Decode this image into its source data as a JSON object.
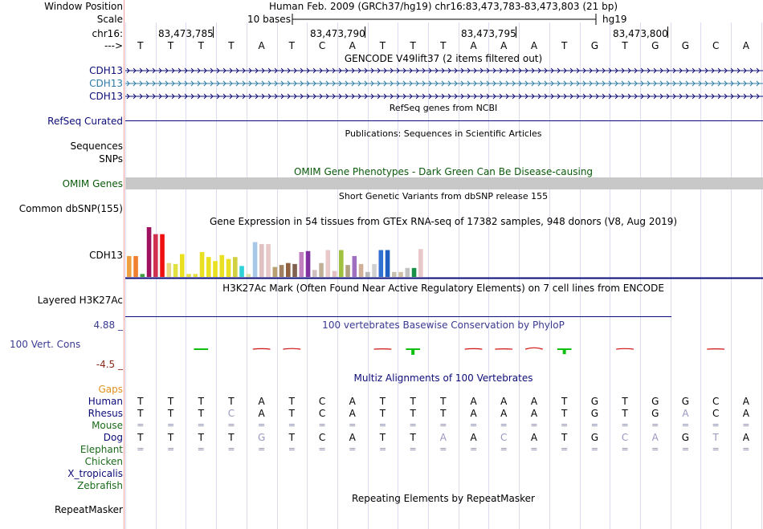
{
  "header": {
    "window_position_label": "Window Position",
    "assembly_title": "Human Feb. 2009 (GRCh37/hg19)   chr16:83,473,783-83,473,803 (21 bp)",
    "scale_label": "Scale",
    "scale_text": "10 bases",
    "scale_assembly": "hg19",
    "chrom_label": "chr16:",
    "arrow_label": "--->",
    "coord_ticks": [
      "83,473,785",
      "83,473,790",
      "83,473,795",
      "83,473,800"
    ],
    "reference_bases": [
      "T",
      "T",
      "T",
      "T",
      "A",
      "T",
      "C",
      "A",
      "T",
      "T",
      "T",
      "A",
      "A",
      "A",
      "T",
      "G",
      "T",
      "G",
      "G",
      "C",
      "A"
    ]
  },
  "tracks": {
    "gencode": {
      "title": "GENCODE V49lift37 (2 items filtered out)",
      "items": [
        {
          "label": "CDH13",
          "color": "#0c0c78"
        },
        {
          "label": "CDH13",
          "color": "#2c7aa8"
        },
        {
          "label": "CDH13",
          "color": "#0c0c78"
        }
      ]
    },
    "refseq": {
      "title": "RefSeq genes from NCBI",
      "label": "RefSeq Curated",
      "color": "#0c0c78"
    },
    "publications": {
      "title": "Publications: Sequences in Scientific Articles",
      "labels": [
        "Sequences",
        "SNPs"
      ]
    },
    "omim": {
      "title": "OMIM Gene Phenotypes - Dark Green Can Be Disease-causing",
      "label": "OMIM Genes",
      "color": "#0a5a0a",
      "bar_color": "#c8c8c8"
    },
    "dbsnp": {
      "title": "Short Genetic Variants from dbSNP release 155",
      "label": "Common dbSNP(155)"
    },
    "gtex": {
      "title": "Gene Expression in 54 tissues from GTEx RNA-seq of 17382 samples, 948 donors (V8, Aug 2019)",
      "label": "CDH13",
      "bars": [
        {
          "v": 0.42,
          "c": "#f0a040"
        },
        {
          "v": 0.42,
          "c": "#f08030"
        },
        {
          "v": 0.06,
          "c": "#40a040"
        },
        {
          "v": 1.0,
          "c": "#a01060"
        },
        {
          "v": 0.86,
          "c": "#d03050"
        },
        {
          "v": 0.86,
          "c": "#f01010"
        },
        {
          "v": 0.28,
          "c": "#e8d880"
        },
        {
          "v": 0.26,
          "c": "#e0e040"
        },
        {
          "v": 0.46,
          "c": "#e8e020"
        },
        {
          "v": 0.06,
          "c": "#e8e040"
        },
        {
          "v": 0.06,
          "c": "#e8e040"
        },
        {
          "v": 0.5,
          "c": "#e8e020"
        },
        {
          "v": 0.4,
          "c": "#e8e020"
        },
        {
          "v": 0.32,
          "c": "#e8e020"
        },
        {
          "v": 0.44,
          "c": "#e8e020"
        },
        {
          "v": 0.36,
          "c": "#e8e020"
        },
        {
          "v": 0.4,
          "c": "#d0d040"
        },
        {
          "v": 0.22,
          "c": "#30d0d8"
        },
        {
          "v": 0.06,
          "c": "#e0e0a0"
        },
        {
          "v": 0.7,
          "c": "#a8c8e8"
        },
        {
          "v": 0.66,
          "c": "#e0c0c0"
        },
        {
          "v": 0.66,
          "c": "#e8c8c8"
        },
        {
          "v": 0.2,
          "c": "#b8a070"
        },
        {
          "v": 0.24,
          "c": "#a08060"
        },
        {
          "v": 0.28,
          "c": "#906040"
        },
        {
          "v": 0.26,
          "c": "#806050"
        },
        {
          "v": 0.5,
          "c": "#c080c0"
        },
        {
          "v": 0.52,
          "c": "#8030a0"
        },
        {
          "v": 0.14,
          "c": "#d0c0c0"
        },
        {
          "v": 0.28,
          "c": "#c0b098"
        },
        {
          "v": 0.54,
          "c": "#e8c8c8"
        },
        {
          "v": 0.12,
          "c": "#e0c0c0"
        },
        {
          "v": 0.54,
          "c": "#a0c040"
        },
        {
          "v": 0.24,
          "c": "#b0a080"
        },
        {
          "v": 0.42,
          "c": "#a070c0"
        },
        {
          "v": 0.26,
          "c": "#d0b098"
        },
        {
          "v": 0.1,
          "c": "#b8b8b8"
        },
        {
          "v": 0.26,
          "c": "#d0d0d0"
        },
        {
          "v": 0.54,
          "c": "#3070d0"
        },
        {
          "v": 0.54,
          "c": "#2060c0"
        },
        {
          "v": 0.1,
          "c": "#c8c0b0"
        },
        {
          "v": 0.1,
          "c": "#d0c0a8"
        },
        {
          "v": 0.18,
          "c": "#c0c0c0"
        },
        {
          "v": 0.18,
          "c": "#189048"
        },
        {
          "v": 0.56,
          "c": "#e8c8c8"
        }
      ]
    },
    "h3k27ac": {
      "title": "H3K27Ac Mark (Often Found Near Active Regulatory Elements) on 7 cell lines from ENCODE",
      "label": "Layered H3K27Ac"
    },
    "phylop": {
      "title": "100 vertebrates Basewise Conservation by PhyloP",
      "label": "100 Vert. Cons",
      "max_label": "4.88 _",
      "min_label": "-4.5 _",
      "values": [
        0.0,
        0.0,
        0.2,
        0.0,
        -0.3,
        -0.4,
        0.0,
        0.0,
        -0.2,
        1.0,
        0.0,
        -0.3,
        -0.2,
        -0.9,
        0.9,
        0.0,
        -0.35,
        0.0,
        0.0,
        -0.2,
        0.0
      ]
    },
    "multiz": {
      "title": "Multiz Alignments of 100 Vertebrates",
      "species": [
        {
          "name": "Gaps",
          "color": "#e0901c",
          "row": ""
        },
        {
          "name": "Human",
          "color": "#0c0c78",
          "row": "TTTTATCATTTAAATGTGGCA"
        },
        {
          "name": "Rhesus",
          "color": "#0c0c78",
          "row": "TTTCATCATTTAAATGTGACA"
        },
        {
          "name": "Mouse",
          "color": "#1a6a1a",
          "row": "====================="
        },
        {
          "name": "Dog",
          "color": "#0c0c78",
          "row": "TTTTGTCATTAACATGCAGTA"
        },
        {
          "name": "Elephant",
          "color": "#1a6a1a",
          "row": "====================="
        },
        {
          "name": "Chicken",
          "color": "#1a6a1a",
          "row": ""
        },
        {
          "name": "X_tropicalis",
          "color": "#0c0c78",
          "row": ""
        },
        {
          "name": "Zebrafish",
          "color": "#1a6a1a",
          "row": ""
        }
      ]
    },
    "repeatmasker": {
      "title": "Repeating Elements by RepeatMasker",
      "label": "RepeatMasker"
    }
  }
}
